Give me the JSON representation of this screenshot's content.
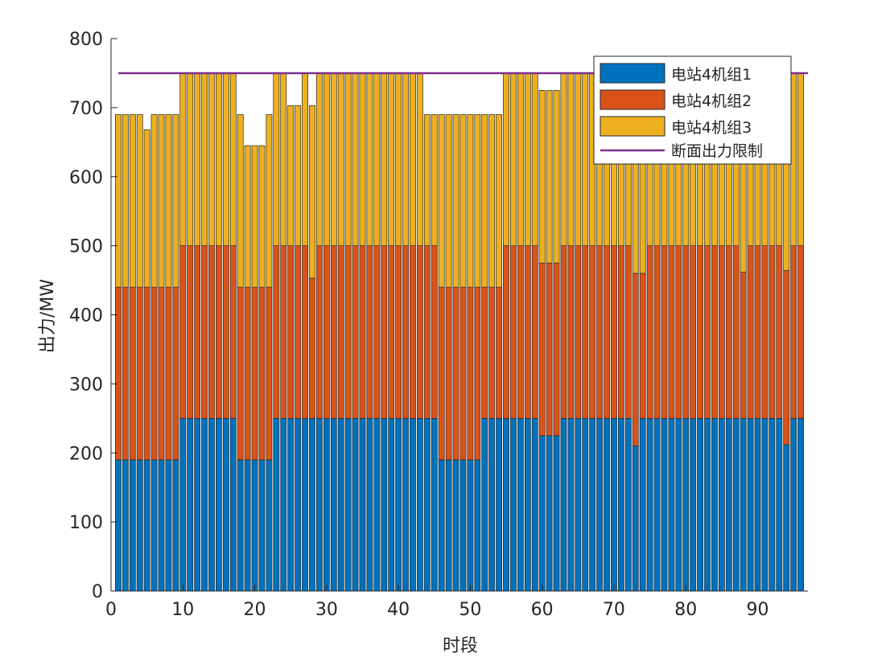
{
  "chart_data": {
    "type": "bar",
    "stacked": true,
    "title": "",
    "xlabel": "时段",
    "ylabel": "出力/MW",
    "xlim": [
      0,
      97
    ],
    "ylim": [
      0,
      800
    ],
    "xticks": [
      0,
      10,
      20,
      30,
      40,
      50,
      60,
      70,
      80,
      90
    ],
    "yticks": [
      0,
      100,
      200,
      300,
      400,
      500,
      600,
      700,
      800
    ],
    "xtick_labels": [
      "0",
      "10",
      "20",
      "30",
      "40",
      "50",
      "60",
      "70",
      "80",
      "90"
    ],
    "ytick_labels": [
      "0",
      "100",
      "200",
      "300",
      "400",
      "500",
      "600",
      "700",
      "800"
    ],
    "legend_position": "top-right",
    "categories": [
      1,
      2,
      3,
      4,
      5,
      6,
      7,
      8,
      9,
      10,
      11,
      12,
      13,
      14,
      15,
      16,
      17,
      18,
      19,
      20,
      21,
      22,
      23,
      24,
      25,
      26,
      27,
      28,
      29,
      30,
      31,
      32,
      33,
      34,
      35,
      36,
      37,
      38,
      39,
      40,
      41,
      42,
      43,
      44,
      45,
      46,
      47,
      48,
      49,
      50,
      51,
      52,
      53,
      54,
      55,
      56,
      57,
      58,
      59,
      60,
      61,
      62,
      63,
      64,
      65,
      66,
      67,
      68,
      69,
      70,
      71,
      72,
      73,
      74,
      75,
      76,
      77,
      78,
      79,
      80,
      81,
      82,
      83,
      84,
      85,
      86,
      87,
      88,
      89,
      90,
      91,
      92,
      93,
      94,
      95,
      96
    ],
    "series": [
      {
        "name": "电站4机组1",
        "color": "#0072BD",
        "values": [
          190,
          190,
          190,
          190,
          190,
          190,
          190,
          190,
          190,
          250,
          250,
          250,
          250,
          250,
          250,
          250,
          250,
          190,
          190,
          190,
          190,
          190,
          250,
          250,
          250,
          250,
          250,
          250,
          250,
          250,
          250,
          250,
          250,
          250,
          250,
          250,
          250,
          250,
          250,
          250,
          250,
          250,
          250,
          250,
          250,
          190,
          190,
          190,
          190,
          190,
          190,
          250,
          250,
          250,
          250,
          250,
          250,
          250,
          250,
          225,
          225,
          225,
          250,
          250,
          250,
          250,
          250,
          250,
          250,
          250,
          250,
          250,
          210,
          250,
          250,
          250,
          250,
          250,
          250,
          250,
          250,
          250,
          250,
          250,
          250,
          250,
          250,
          250,
          250,
          250,
          250,
          250,
          250,
          212,
          250,
          250
        ]
      },
      {
        "name": "电站4机组2",
        "color": "#D95319",
        "values": [
          250,
          250,
          250,
          250,
          250,
          250,
          250,
          250,
          250,
          250,
          250,
          250,
          250,
          250,
          250,
          250,
          250,
          250,
          250,
          250,
          250,
          250,
          250,
          250,
          250,
          250,
          250,
          203,
          250,
          250,
          250,
          250,
          250,
          250,
          250,
          250,
          250,
          250,
          250,
          250,
          250,
          250,
          250,
          250,
          250,
          250,
          250,
          250,
          250,
          250,
          250,
          190,
          190,
          190,
          250,
          250,
          250,
          250,
          250,
          250,
          250,
          250,
          250,
          250,
          250,
          250,
          250,
          250,
          250,
          250,
          250,
          250,
          250,
          210,
          250,
          250,
          250,
          250,
          250,
          250,
          250,
          250,
          250,
          250,
          250,
          250,
          250,
          212,
          250,
          250,
          250,
          250,
          250,
          252,
          250,
          250
        ]
      },
      {
        "name": "电站4机组3",
        "color": "#EDB120",
        "values": [
          250,
          250,
          250,
          250,
          228,
          250,
          250,
          250,
          250,
          250,
          250,
          250,
          250,
          250,
          250,
          250,
          250,
          250,
          205,
          205,
          205,
          250,
          250,
          250,
          203,
          203,
          250,
          250,
          250,
          250,
          250,
          250,
          250,
          250,
          250,
          250,
          250,
          250,
          250,
          250,
          250,
          250,
          250,
          190,
          190,
          250,
          250,
          250,
          250,
          250,
          250,
          250,
          250,
          250,
          250,
          250,
          250,
          250,
          250,
          250,
          250,
          250,
          250,
          250,
          250,
          250,
          250,
          250,
          250,
          250,
          250,
          250,
          290,
          290,
          250,
          250,
          250,
          250,
          250,
          250,
          250,
          250,
          250,
          250,
          250,
          250,
          250,
          288,
          250,
          250,
          250,
          250,
          250,
          250,
          250,
          250
        ]
      }
    ],
    "reference_line": {
      "name": "断面出力限制",
      "color": "#7E2F8E",
      "value": 750
    }
  }
}
